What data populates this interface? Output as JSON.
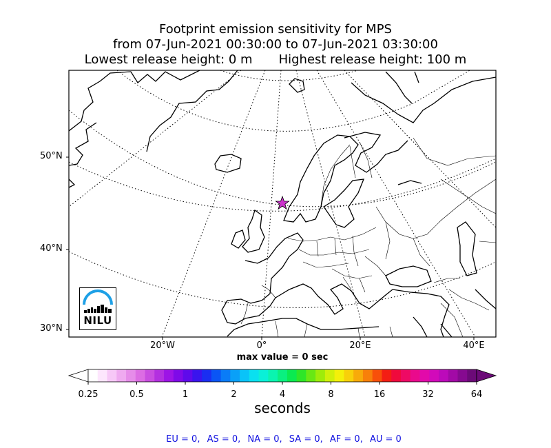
{
  "title": {
    "line1": "Footprint emission sensitivity for MPS",
    "line2": "from 07-Jun-2021 00:30:00 to 07-Jun-2021 03:30:00",
    "lowest": "Lowest release height: 0 m",
    "highest": "Highest release height: 100 m"
  },
  "map": {
    "lat_labels": [
      "50°N",
      "40°N",
      "30°N"
    ],
    "lon_labels": [
      "20°W",
      "0°",
      "20°E",
      "40°E"
    ],
    "receptor_marker": "star-icon",
    "receptor_color": "#cc33cc",
    "logo_text": "NILU"
  },
  "max_value": "max value = 0 sec",
  "colorbar": {
    "ticks": [
      "0.25",
      "0.5",
      "1",
      "2",
      "4",
      "8",
      "16",
      "32",
      "64"
    ],
    "label": "seconds",
    "colors": [
      "#ffffff",
      "#fde6fd",
      "#f7c8f7",
      "#efaaf0",
      "#e68ce9",
      "#dc6de3",
      "#c94ee0",
      "#b330e0",
      "#9d14e6",
      "#7f0ae8",
      "#5f0aeb",
      "#3a14ee",
      "#1a2ef2",
      "#0a55f5",
      "#0a7cf7",
      "#0aa0f8",
      "#0ac3f8",
      "#0ae0f0",
      "#0af0d8",
      "#0af4b0",
      "#0af080",
      "#0aea50",
      "#2ee628",
      "#68e814",
      "#9eec0a",
      "#d0f00a",
      "#f4f00a",
      "#f8d00a",
      "#f8aa0a",
      "#f8800a",
      "#f8500a",
      "#f41e14",
      "#f00a3c",
      "#ee0a64",
      "#ea0a8c",
      "#e20aaa",
      "#d20aba",
      "#bc0aba",
      "#a20aa6",
      "#860a90",
      "#6c0a78"
    ]
  },
  "regions": [
    {
      "name": "EU",
      "value": "EU = 0,"
    },
    {
      "name": "AS",
      "value": "AS = 0,"
    },
    {
      "name": "NA",
      "value": "NA = 0,"
    },
    {
      "name": "SA",
      "value": "SA = 0,"
    },
    {
      "name": "AF",
      "value": "AF = 0,"
    },
    {
      "name": "AU",
      "value": "AU = 0"
    }
  ]
}
